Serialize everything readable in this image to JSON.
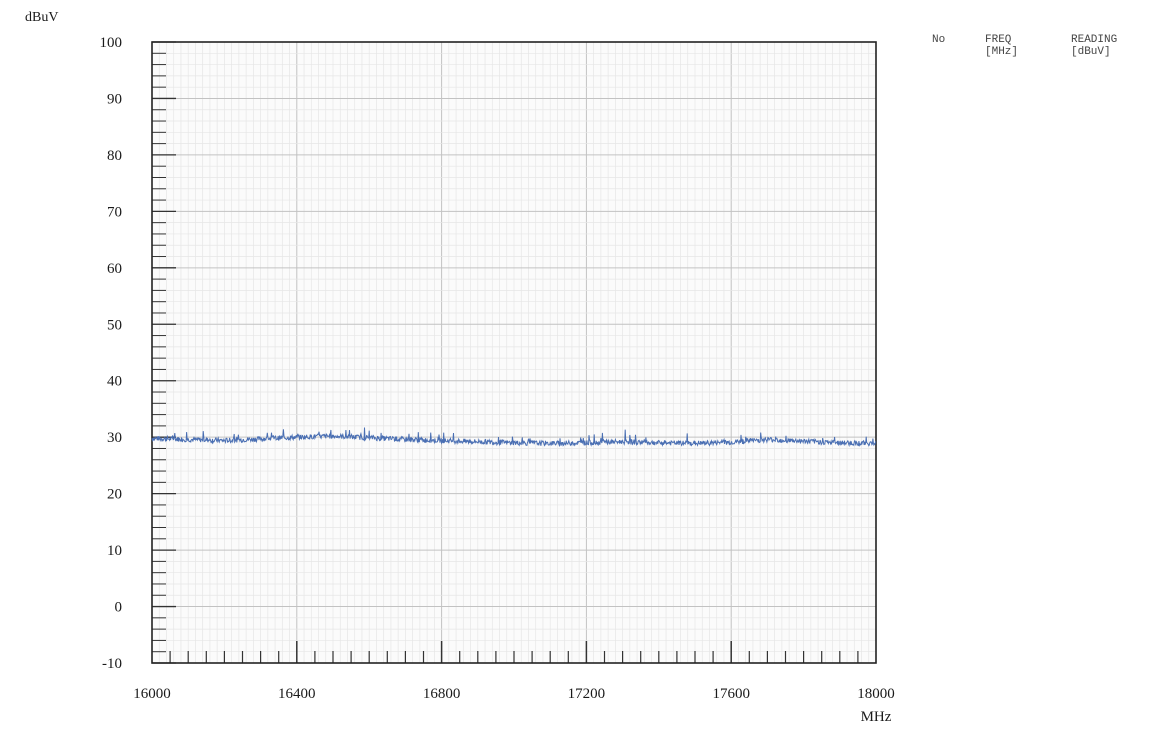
{
  "chart_data": {
    "type": "line",
    "title": "",
    "ylabel": "dBuV",
    "xlabel": "MHz",
    "xlim": [
      16000,
      18000
    ],
    "ylim": [
      -10,
      100
    ],
    "x_tick_labels": [
      "16000",
      "16400",
      "16800",
      "17200",
      "17600",
      "18000"
    ],
    "y_tick_labels": [
      "100",
      "90",
      "80",
      "70",
      "60",
      "50",
      "40",
      "30",
      "20",
      "10",
      "0",
      "-10"
    ],
    "grid": true,
    "series": [
      {
        "color": "#4a6fb3",
        "x": [
          16000,
          16100,
          16200,
          16300,
          16400,
          16500,
          16600,
          16700,
          16800,
          16900,
          17000,
          17100,
          17200,
          17300,
          17400,
          17500,
          17600,
          17700,
          17800,
          17900,
          18000
        ],
        "y": [
          29.8,
          29.6,
          29.4,
          29.7,
          30.0,
          30.2,
          29.9,
          29.6,
          29.4,
          29.2,
          29.0,
          28.9,
          29.0,
          29.2,
          29.0,
          28.9,
          29.1,
          29.6,
          29.3,
          29.0,
          28.9
        ]
      }
    ]
  },
  "readout_table": {
    "col_no": "No",
    "col_freq": "FREQ\n[MHz]",
    "col_reading": "READING\n[dBuV]"
  }
}
